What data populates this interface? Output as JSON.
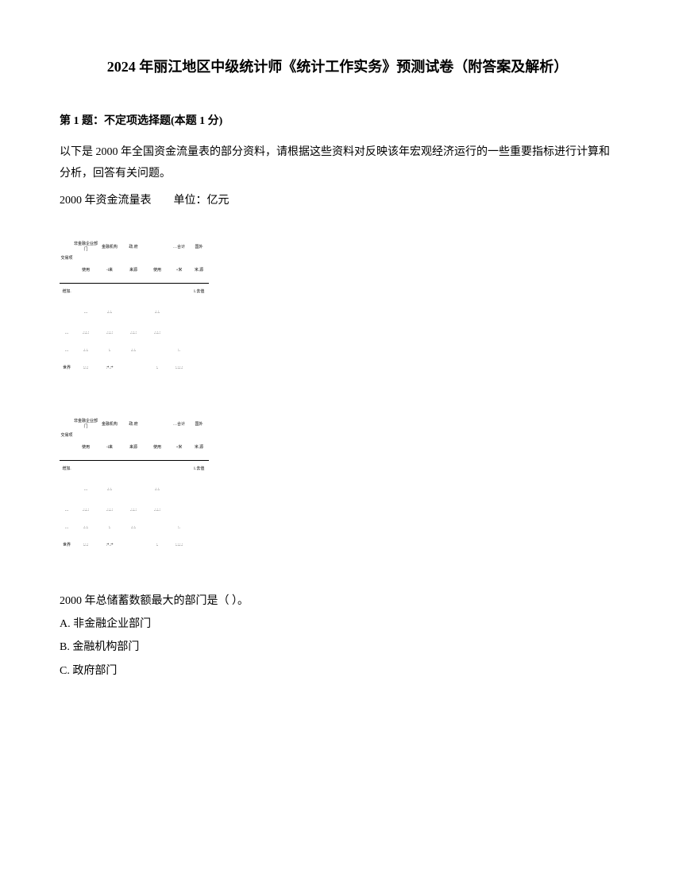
{
  "title": "2024 年丽江地区中级统计师《统计工作实务》预测试卷（附答案及解析）",
  "question_header": "第 1 题：不定项选择题(本题 1 分)",
  "intro_text": "以下是 2000 年全国资金流量表的部分资料，请根据这些资料对反映该年宏观经济运行的一些重要指标进行计算和分析，回答有关问题。",
  "unit_line": "2000 年资金流量表  单位：亿元",
  "table": {
    "headers_top": [
      "非金融企业部门",
      "金融机构",
      "政.府",
      "…合计",
      "国外"
    ],
    "sub_headers": [
      "使用",
      "-l来",
      "使用",
      "来源",
      "使用",
      "+米",
      "使用",
      "使",
      "米.源"
    ],
    "row_labels": [
      "交易项",
      "增加.",
      "…",
      "…",
      "世界"
    ],
    "r1_right": "1.去值",
    "r2": [
      "",
      "…",
      ".:.:.",
      "",
      ".:.:.",
      "",
      ""
    ],
    "r3": [
      ".:.:.:",
      ".:.:.:",
      ".:.:.:",
      ".:.:.:",
      "",
      "",
      ""
    ],
    "r4": [
      ".:.:.",
      ":.",
      ".:.:.",
      "",
      ":.",
      "",
      ""
    ],
    "r5": [
      ":.:.:",
      ":*.:*",
      "",
      ":.",
      ":.:.:.:",
      "",
      ""
    ]
  },
  "question": "2000 年总储蓄数额最大的部门是（ ）。",
  "options": {
    "A": "A. 非金融企业部门",
    "B": "B. 金融机构部门",
    "C": "C. 政府部门"
  },
  "colors": {
    "text": "#000000",
    "background": "#ffffff"
  }
}
